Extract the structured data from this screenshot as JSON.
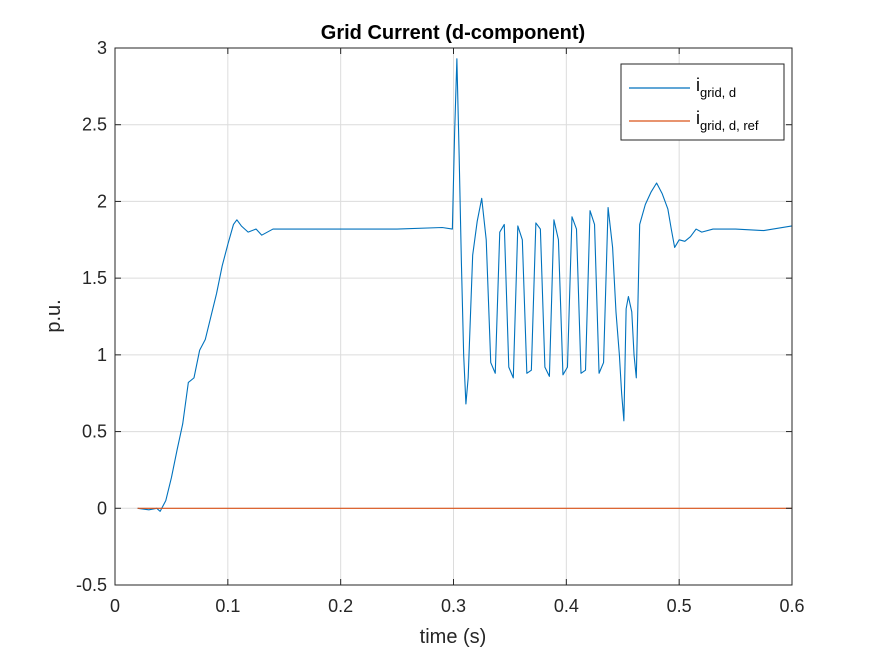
{
  "chart_data": {
    "type": "line",
    "title": "Grid Current (d-component)",
    "xlabel": "time (s)",
    "ylabel": "p.u.",
    "xlim": [
      0,
      0.6
    ],
    "ylim": [
      -0.5,
      3
    ],
    "xticks": [
      "0",
      "0.1",
      "0.2",
      "0.3",
      "0.4",
      "0.5",
      "0.6"
    ],
    "yticks": [
      "-0.5",
      "0",
      "0.5",
      "1",
      "1.5",
      "2",
      "2.5",
      "3"
    ],
    "grid": true,
    "legend_position": "top-right",
    "series": [
      {
        "name_main": "i",
        "name_sub": "grid, d",
        "color": "#0072BD",
        "x": [
          0.02,
          0.03,
          0.037,
          0.04,
          0.045,
          0.05,
          0.055,
          0.06,
          0.065,
          0.07,
          0.075,
          0.08,
          0.085,
          0.09,
          0.095,
          0.1,
          0.105,
          0.108,
          0.112,
          0.118,
          0.125,
          0.13,
          0.14,
          0.15,
          0.2,
          0.25,
          0.29,
          0.299,
          0.301,
          0.303,
          0.305,
          0.307,
          0.309,
          0.311,
          0.313,
          0.317,
          0.321,
          0.325,
          0.329,
          0.333,
          0.337,
          0.341,
          0.345,
          0.349,
          0.353,
          0.357,
          0.361,
          0.365,
          0.369,
          0.373,
          0.377,
          0.381,
          0.385,
          0.389,
          0.393,
          0.397,
          0.401,
          0.405,
          0.409,
          0.413,
          0.417,
          0.421,
          0.425,
          0.429,
          0.433,
          0.437,
          0.441,
          0.444,
          0.447,
          0.449,
          0.451,
          0.453,
          0.455,
          0.458,
          0.46,
          0.462,
          0.465,
          0.47,
          0.475,
          0.48,
          0.485,
          0.49,
          0.493,
          0.496,
          0.5,
          0.505,
          0.51,
          0.515,
          0.52,
          0.53,
          0.55,
          0.575,
          0.6
        ],
        "y": [
          0,
          -0.01,
          0,
          -0.02,
          0.05,
          0.2,
          0.38,
          0.55,
          0.82,
          0.85,
          1.03,
          1.1,
          1.25,
          1.4,
          1.58,
          1.72,
          1.85,
          1.88,
          1.84,
          1.8,
          1.82,
          1.78,
          1.82,
          1.82,
          1.82,
          1.82,
          1.83,
          1.82,
          2.45,
          2.93,
          2.3,
          1.6,
          1.0,
          0.68,
          0.85,
          1.65,
          1.87,
          2.02,
          1.75,
          0.95,
          0.88,
          1.8,
          1.85,
          0.92,
          0.85,
          1.84,
          1.75,
          0.88,
          0.9,
          1.86,
          1.82,
          0.92,
          0.86,
          1.88,
          1.75,
          0.87,
          0.92,
          1.9,
          1.82,
          0.88,
          0.9,
          1.94,
          1.85,
          0.88,
          0.95,
          1.96,
          1.7,
          1.28,
          1.0,
          0.75,
          0.57,
          1.3,
          1.38,
          1.28,
          1.0,
          0.85,
          1.85,
          1.98,
          2.06,
          2.12,
          2.05,
          1.95,
          1.82,
          1.7,
          1.75,
          1.74,
          1.77,
          1.82,
          1.8,
          1.82,
          1.82,
          1.81,
          1.84
        ]
      },
      {
        "name_main": "i",
        "name_sub": "grid, d, ref",
        "color": "#D95319",
        "x": [
          0.02,
          0.6
        ],
        "y": [
          0,
          0
        ]
      }
    ]
  }
}
